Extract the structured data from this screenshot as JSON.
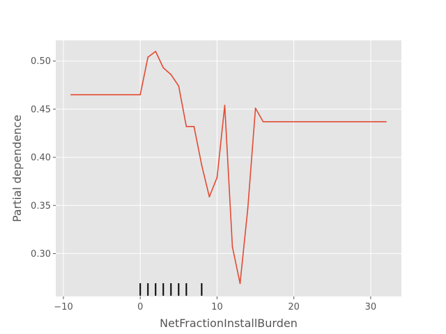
{
  "chart_data": {
    "type": "line",
    "title": "",
    "xlabel": "NetFractionInstallBurden",
    "ylabel": "Partial dependence",
    "xlim": [
      -11,
      34
    ],
    "ylim": [
      0.2555,
      0.5215
    ],
    "grid": true,
    "style": "ggplot",
    "x_ticks": [
      -10,
      0,
      10,
      20,
      30
    ],
    "x_tick_labels": [
      "−10",
      "0",
      "10",
      "20",
      "30"
    ],
    "y_ticks": [
      0.3,
      0.35,
      0.4,
      0.45,
      0.5
    ],
    "y_tick_labels": [
      "0.30",
      "0.35",
      "0.40",
      "0.45",
      "0.50"
    ],
    "series": [
      {
        "color": "#E24A33",
        "x": [
          -9,
          0,
          1,
          2,
          3,
          4,
          5,
          6,
          7,
          8,
          9,
          10,
          11,
          12,
          13,
          14,
          15,
          16,
          32
        ],
        "y": [
          0.465,
          0.465,
          0.504,
          0.51,
          0.493,
          0.486,
          0.474,
          0.432,
          0.432,
          0.392,
          0.359,
          0.379,
          0.454,
          0.307,
          0.269,
          0.347,
          0.451,
          0.437,
          0.437
        ]
      }
    ],
    "rug": {
      "color": "#000000",
      "x": [
        0,
        1,
        2,
        3,
        4,
        5,
        6,
        8
      ]
    }
  }
}
